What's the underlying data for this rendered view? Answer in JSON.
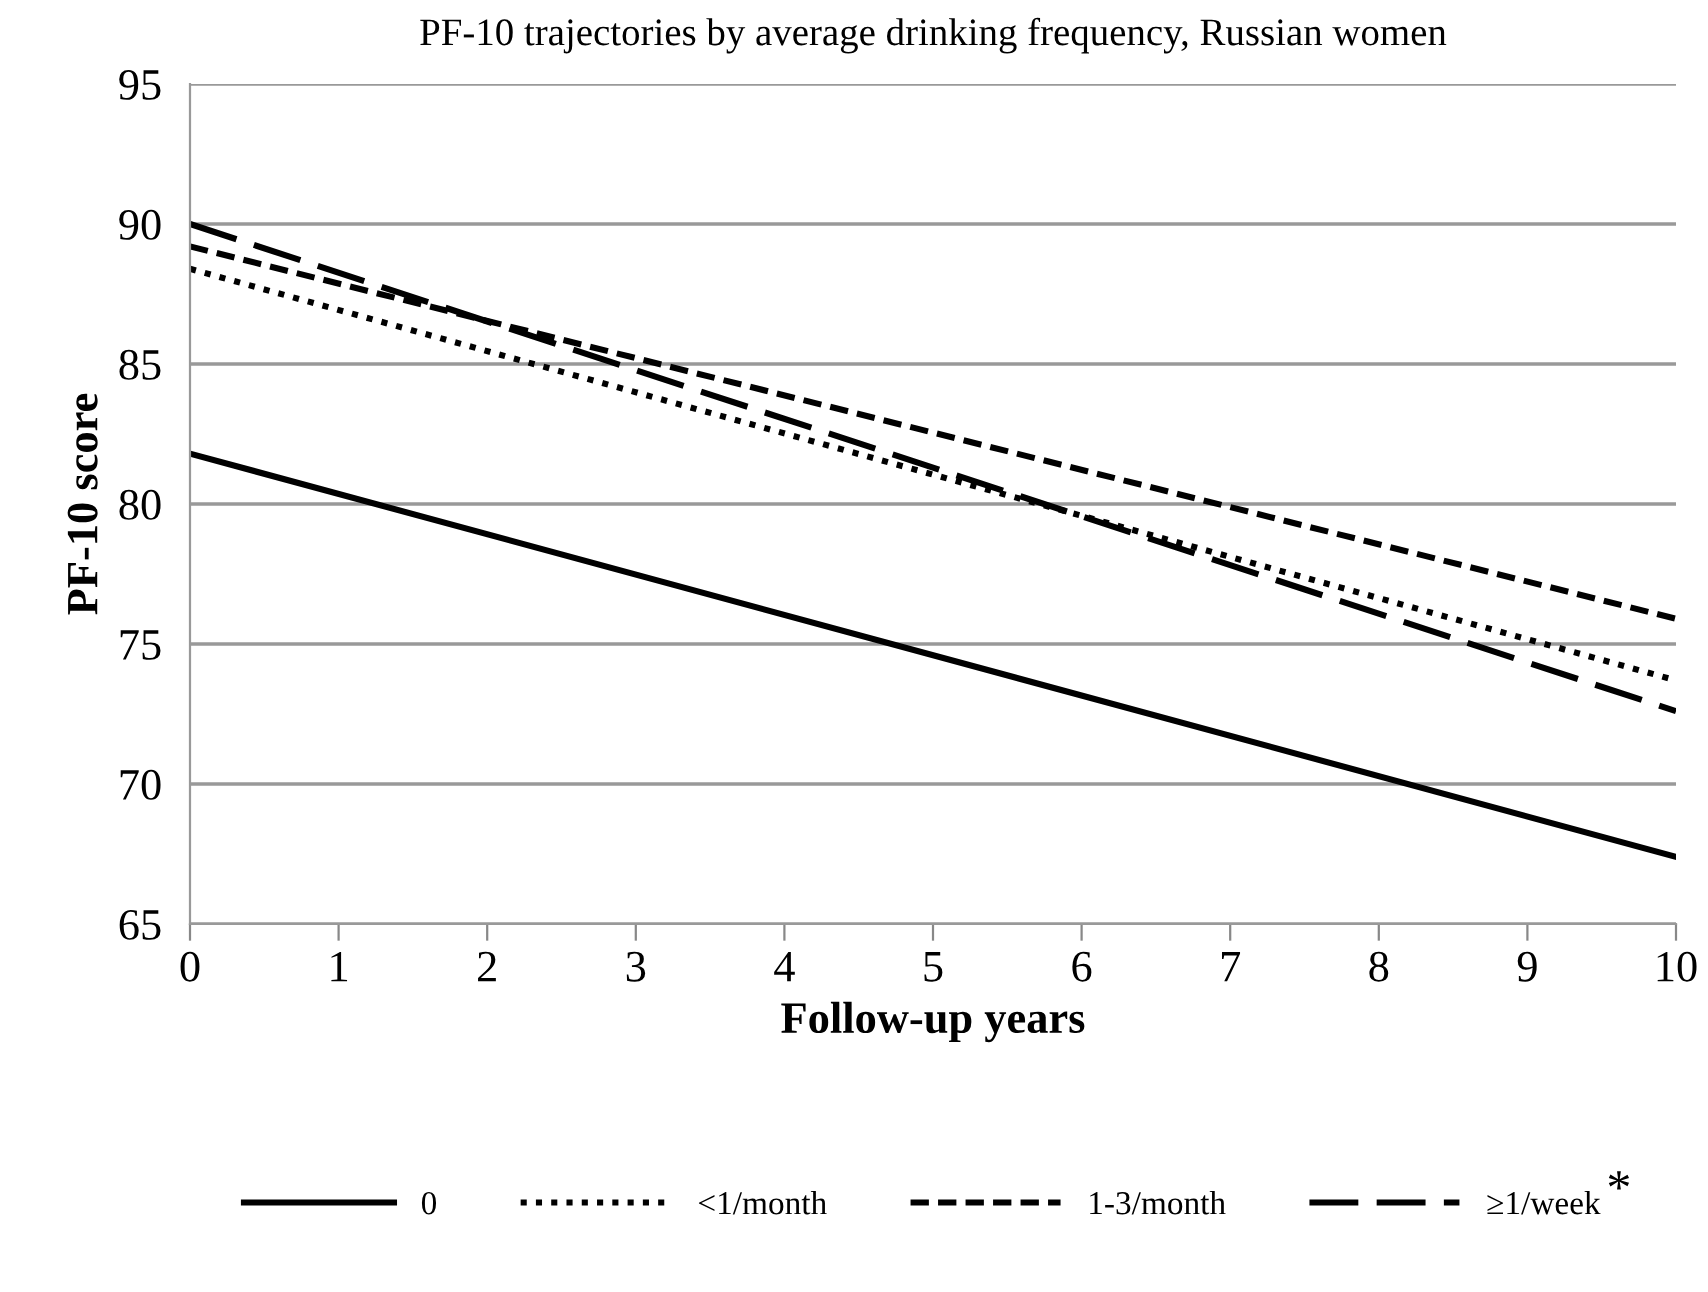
{
  "chart_data": {
    "type": "line",
    "title": "PF-10 trajectories by average drinking frequency, Russian women",
    "xlabel": "Follow-up years",
    "ylabel": "PF-10 score",
    "x": [
      0,
      10
    ],
    "series": [
      {
        "name": "0",
        "color": "#000000",
        "values": [
          81.8,
          67.4
        ],
        "line_style": "solid"
      },
      {
        "name": "<1/month",
        "color": "#000000",
        "values": [
          88.4,
          73.7
        ],
        "line_style": "dotted"
      },
      {
        "name": "1-3/month",
        "color": "#000000",
        "values": [
          89.2,
          75.9
        ],
        "line_style": "dashed"
      },
      {
        "name": "≥1/week",
        "color": "#000000",
        "values": [
          90.0,
          72.6
        ],
        "line_style": "dashed"
      }
    ],
    "xlim": [
      0,
      10
    ],
    "xticks": [
      0,
      1,
      2,
      3,
      4,
      5,
      6,
      7,
      8,
      9,
      10
    ],
    "ylim": [
      65,
      95
    ],
    "yticks": [
      65,
      70,
      75,
      80,
      85,
      90,
      95
    ],
    "grid": "y",
    "legend": "bottom",
    "marker": "none",
    "annotations": [
      "*"
    ]
  }
}
